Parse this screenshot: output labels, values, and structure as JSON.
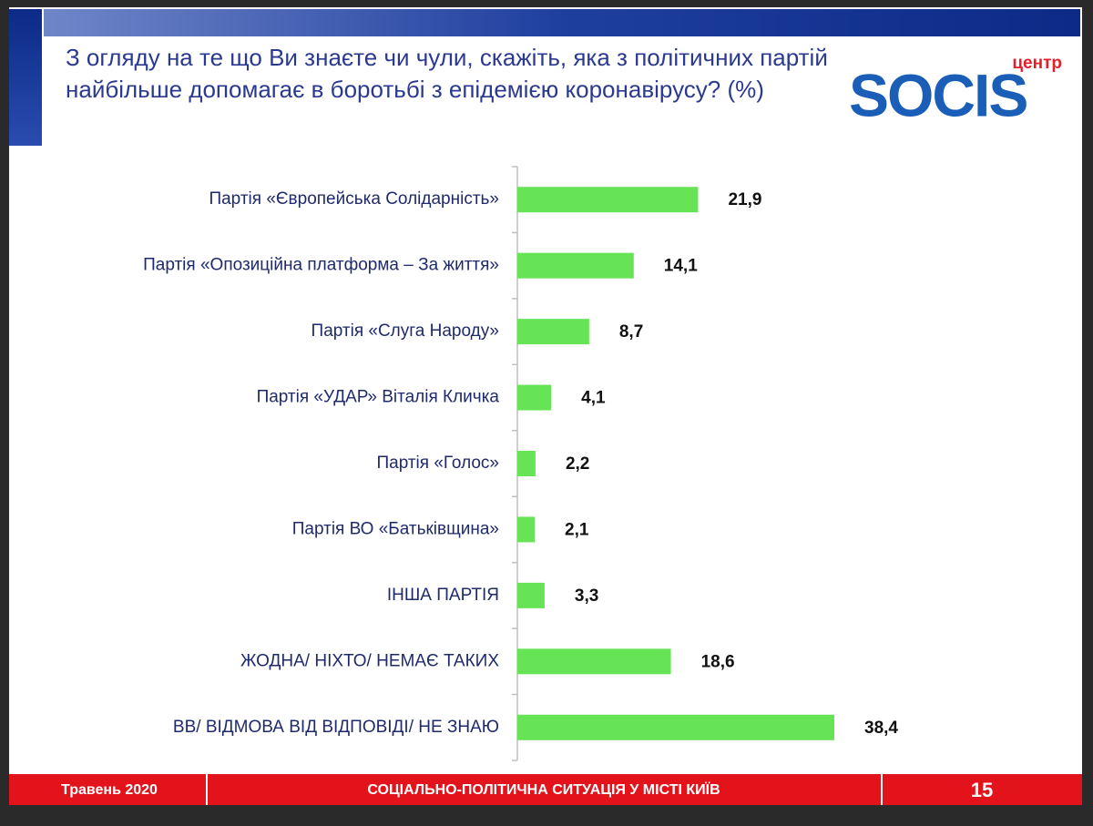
{
  "chart_data": {
    "type": "bar",
    "orientation": "horizontal",
    "title": "З огляду на те що Ви знаєте чи чули, скажіть, яка з політичних партій найбільше допомагає в боротьбі з епідемією коронавірусу? (%)",
    "categories": [
      "Партія «Європейська Солідарність»",
      "Партія «Опозиційна платформа – За життя»",
      "Партія «Слуга Народу»",
      "Партія «УДАР» Віталія Кличка",
      "Партія «Голос»",
      "Партія ВО «Батьківщина»",
      "ІНША ПАРТІЯ",
      "ЖОДНА/ НІХТО/ НЕМАЄ ТАКИХ",
      "ВВ/ ВІДМОВА ВІД ВІДПОВІДІ/ НЕ ЗНАЮ"
    ],
    "values": [
      21.9,
      14.1,
      8.7,
      4.1,
      2.2,
      2.1,
      3.3,
      18.6,
      38.4
    ],
    "value_labels": [
      "21,9",
      "14,1",
      "8,7",
      "4,1",
      "2,2",
      "2,1",
      "3,3",
      "18,6",
      "38,4"
    ],
    "color": "#66e455"
  },
  "logo": {
    "top": "центр",
    "name": "SOCIS"
  },
  "footer": {
    "date": "Травень 2020",
    "subject": "СОЦІАЛЬНО-ПОЛІТИЧНА СИТУАЦІЯ У МІСТІ КИЇВ",
    "page": "15"
  }
}
